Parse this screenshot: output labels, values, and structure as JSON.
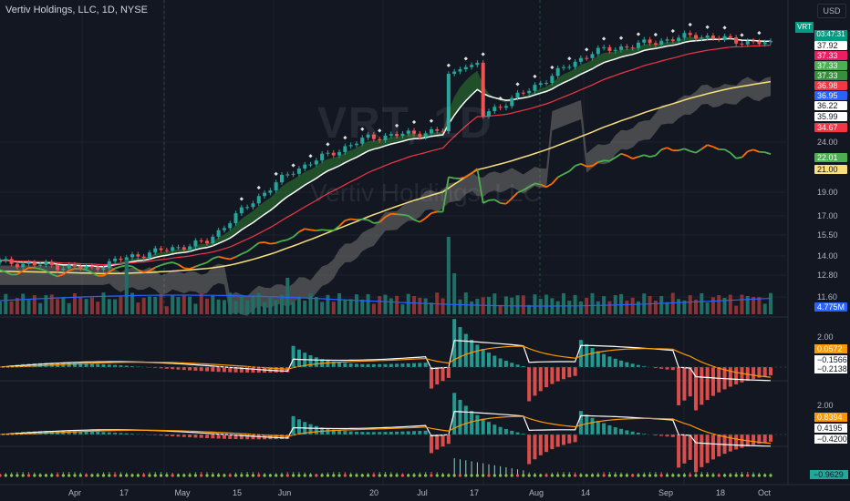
{
  "header": {
    "title": "Vertiv Holdings, LLC, 1D, NYSE",
    "currency": "USD"
  },
  "watermark": {
    "symbol": "VRT, 1D",
    "name": "Vertiv Holdings, LLC"
  },
  "symbol_badge": "VRT",
  "countdown": "03:47:31",
  "colors": {
    "bg": "#131722",
    "up": "#26a69a",
    "down": "#ef5350",
    "ema_fast": "#ffffff",
    "ema_slow": "#f23645",
    "sma_long": "#f7e07b",
    "rs_line_up": "#4caf50",
    "rs_line_down": "#ff6d00",
    "macd_signal": "#ff9800",
    "volume_ma": "#2962ff",
    "cloud": "#a8a69a"
  },
  "price_axis_labels": [
    "24.00",
    "19.00",
    "17.00",
    "15.50",
    "14.00",
    "12.80",
    "11.60"
  ],
  "price_tags": [
    {
      "text": "37.92",
      "bg": "#089981",
      "fg": "#ffffff"
    },
    {
      "text": "37.92",
      "bg": "#ffffff",
      "fg": "#131722"
    },
    {
      "text": "37.33",
      "bg": "#e91e63",
      "fg": "#ffffff"
    },
    {
      "text": "37.33",
      "bg": "#4caf50",
      "fg": "#ffffff"
    },
    {
      "text": "37.33",
      "bg": "#388e3c",
      "fg": "#ffffff"
    },
    {
      "text": "36.98",
      "bg": "#f23645",
      "fg": "#ffffff"
    },
    {
      "text": "36.95",
      "bg": "#2962ff",
      "fg": "#ffffff"
    },
    {
      "text": "36.22",
      "bg": "#ffffff",
      "fg": "#131722"
    },
    {
      "text": "35.99",
      "bg": "#ffffff",
      "fg": "#131722"
    },
    {
      "text": "34.67",
      "bg": "#f23645",
      "fg": "#ffffff"
    },
    {
      "text": "22.01",
      "bg": "#4caf50",
      "fg": "#ffffff"
    },
    {
      "text": "21.00",
      "bg": "#f7e07b",
      "fg": "#131722"
    },
    {
      "text": "4.775M",
      "bg": "#2962ff",
      "fg": "#ffffff"
    }
  ],
  "pane1": {
    "axis_label": "2.00",
    "tags": [
      {
        "text": "0.0572",
        "bg": "#ff9800",
        "fg": "#ffffff"
      },
      {
        "text": "−0.1566",
        "bg": "#ffffff",
        "fg": "#131722"
      },
      {
        "text": "−0.2138",
        "bg": "#ffffff",
        "fg": "#131722"
      }
    ]
  },
  "pane2": {
    "axis_label": "2.00",
    "tags": [
      {
        "text": "0.8394",
        "bg": "#ff9800",
        "fg": "#ffffff"
      },
      {
        "text": "0.4195",
        "bg": "#ffffff",
        "fg": "#131722"
      },
      {
        "text": "−0.4200",
        "bg": "#ffffff",
        "fg": "#131722"
      }
    ]
  },
  "pane3": {
    "tags": [
      {
        "text": "−0.9629",
        "bg": "#26a69a",
        "fg": "#131722"
      }
    ]
  },
  "time_axis_labels": [
    "Apr",
    "17",
    "May",
    "15",
    "Jun",
    "20",
    "Jul",
    "17",
    "Aug",
    "14",
    "Sep",
    "18",
    "Oct"
  ],
  "chart_data": {
    "type": "line",
    "title": "Vertiv Holdings, LLC, 1D, NYSE",
    "symbol": "VRT",
    "last_price": 37.92,
    "x": [
      "Apr",
      "17",
      "May",
      "15",
      "Jun",
      "20",
      "Jul",
      "17",
      "Aug",
      "14",
      "Sep",
      "18",
      "Oct"
    ],
    "y_ticks": [
      24.0,
      19.0,
      17.0,
      15.5,
      14.0,
      12.8,
      11.6
    ],
    "series": [
      {
        "name": "price",
        "values": [
          13.6,
          13.2,
          13.9,
          15.0,
          21.0,
          24.5,
          25.5,
          30.6,
          36.5,
          38.0,
          39.5,
          38.5,
          37.9
        ]
      }
    ]
  }
}
